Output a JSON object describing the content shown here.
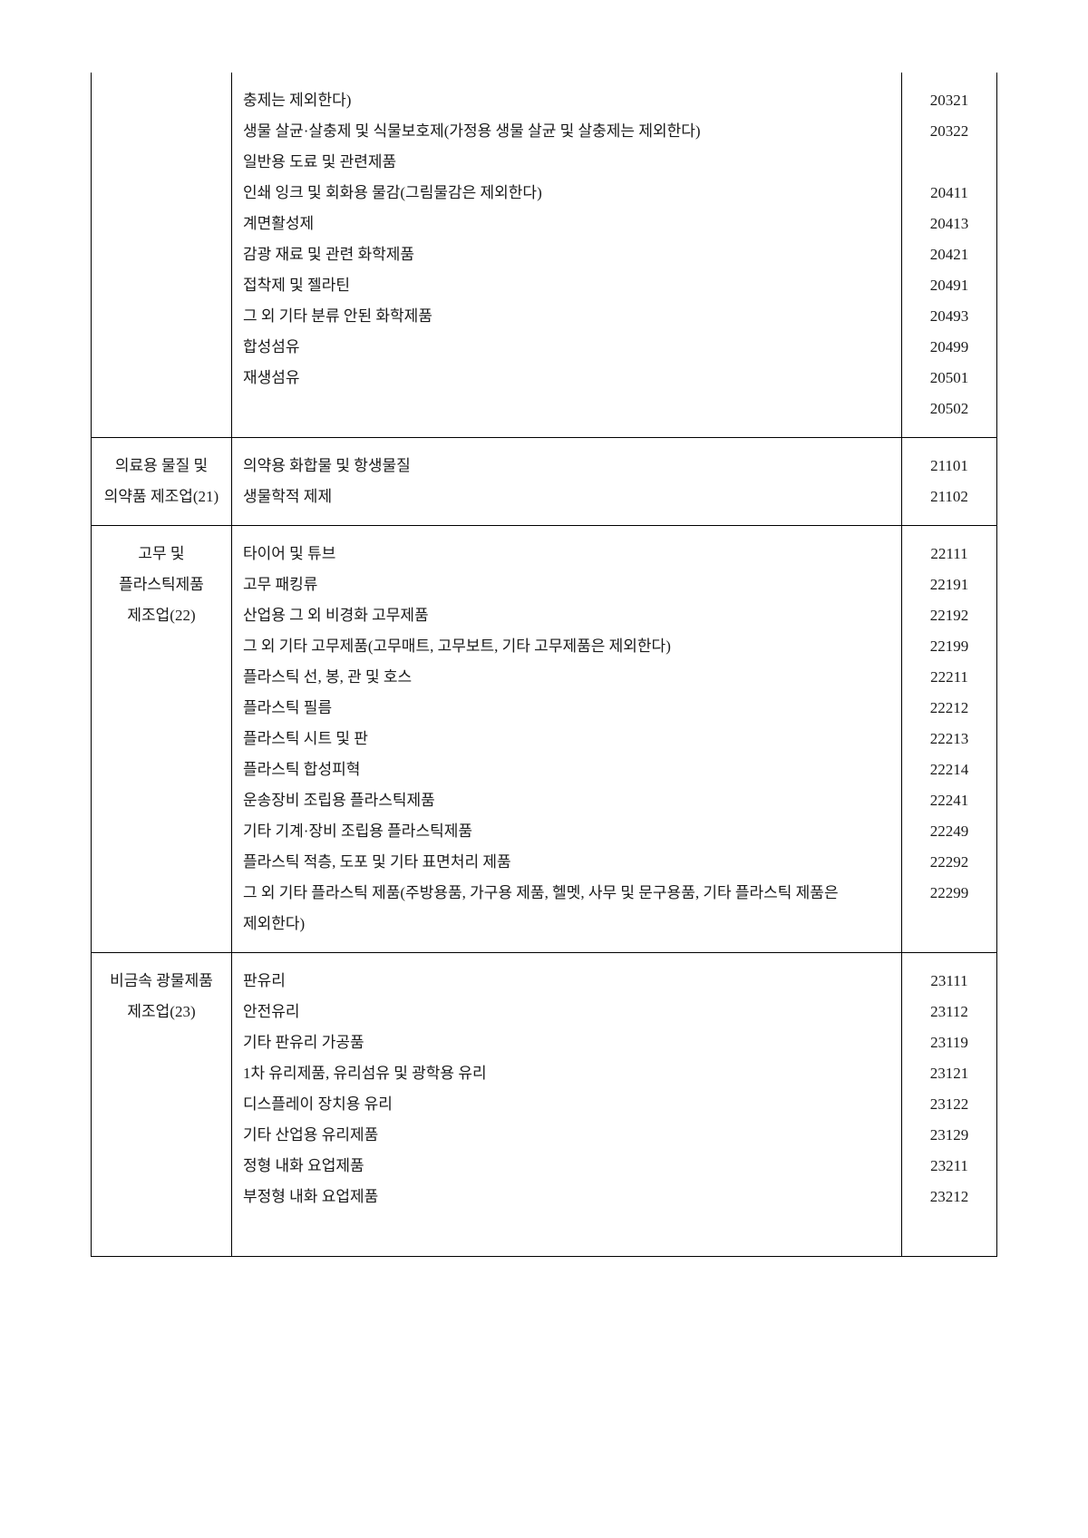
{
  "rows": [
    {
      "category": "",
      "items": [
        {
          "desc": "충제는 제외한다)",
          "code": "20321"
        },
        {
          "desc": "생물 살균·살충제 및 식물보호제(가정용 생물 살균 및 살충제는 제외한다)",
          "code": "20322"
        },
        {
          "desc": "일반용 도료 및 관련제품",
          "code": ""
        },
        {
          "desc": "인쇄 잉크 및 회화용 물감(그림물감은 제외한다)",
          "code": "20411"
        },
        {
          "desc": "계면활성제",
          "code": "20413"
        },
        {
          "desc": "감광 재료 및 관련 화학제품",
          "code": "20421"
        },
        {
          "desc": "접착제 및 젤라틴",
          "code": "20491"
        },
        {
          "desc": "그 외 기타 분류 안된 화학제품",
          "code": "20493"
        },
        {
          "desc": "합성섬유",
          "code": "20499"
        },
        {
          "desc": "재생섬유",
          "code": "20501"
        },
        {
          "desc": "",
          "code": "20502"
        }
      ]
    },
    {
      "category": "의료용 물질 및 의약품 제조업(21)",
      "items": [
        {
          "desc": "의약용 화합물 및 항생물질",
          "code": "21101"
        },
        {
          "desc": "생물학적 제제",
          "code": "21102"
        }
      ]
    },
    {
      "category": "고무 및 플라스틱제품 제조업(22)",
      "items": [
        {
          "desc": "타이어 및 튜브",
          "code": "22111"
        },
        {
          "desc": "고무 패킹류",
          "code": "22191"
        },
        {
          "desc": "산업용 그 외 비경화 고무제품",
          "code": "22192"
        },
        {
          "desc": "그 외 기타 고무제품(고무매트, 고무보트, 기타 고무제품은 제외한다)",
          "code": "22199"
        },
        {
          "desc": "플라스틱 선, 봉, 관 및 호스",
          "code": "22211"
        },
        {
          "desc": "플라스틱 필름",
          "code": "22212"
        },
        {
          "desc": "플라스틱 시트 및 판",
          "code": "22213"
        },
        {
          "desc": "플라스틱 합성피혁",
          "code": "22214"
        },
        {
          "desc": "운송장비 조립용 플라스틱제품",
          "code": "22241"
        },
        {
          "desc": "기타 기계·장비 조립용 플라스틱제품",
          "code": "22249"
        },
        {
          "desc": "플라스틱 적층, 도포 및 기타 표면처리 제품",
          "code": "22292"
        },
        {
          "desc": "그 외 기타 플라스틱 제품(주방용품, 가구용 제품, 헬멧, 사무 및 문구용품, 기타 플라스틱 제품은 제외한다)",
          "code": "22299"
        }
      ]
    },
    {
      "category": "비금속 광물제품 제조업(23)",
      "items": [
        {
          "desc": "판유리",
          "code": "23111"
        },
        {
          "desc": "안전유리",
          "code": "23112"
        },
        {
          "desc": "기타 판유리 가공품",
          "code": "23119"
        },
        {
          "desc": "1차 유리제품, 유리섬유 및 광학용 유리",
          "code": "23121"
        },
        {
          "desc": "디스플레이 장치용 유리",
          "code": "23122"
        },
        {
          "desc": "기타 산업용 유리제품",
          "code": "23129"
        },
        {
          "desc": "정형 내화 요업제품",
          "code": "23211"
        },
        {
          "desc": "부정형 내화 요업제품",
          "code": "23212"
        },
        {
          "desc": "",
          "code": ""
        }
      ]
    }
  ]
}
